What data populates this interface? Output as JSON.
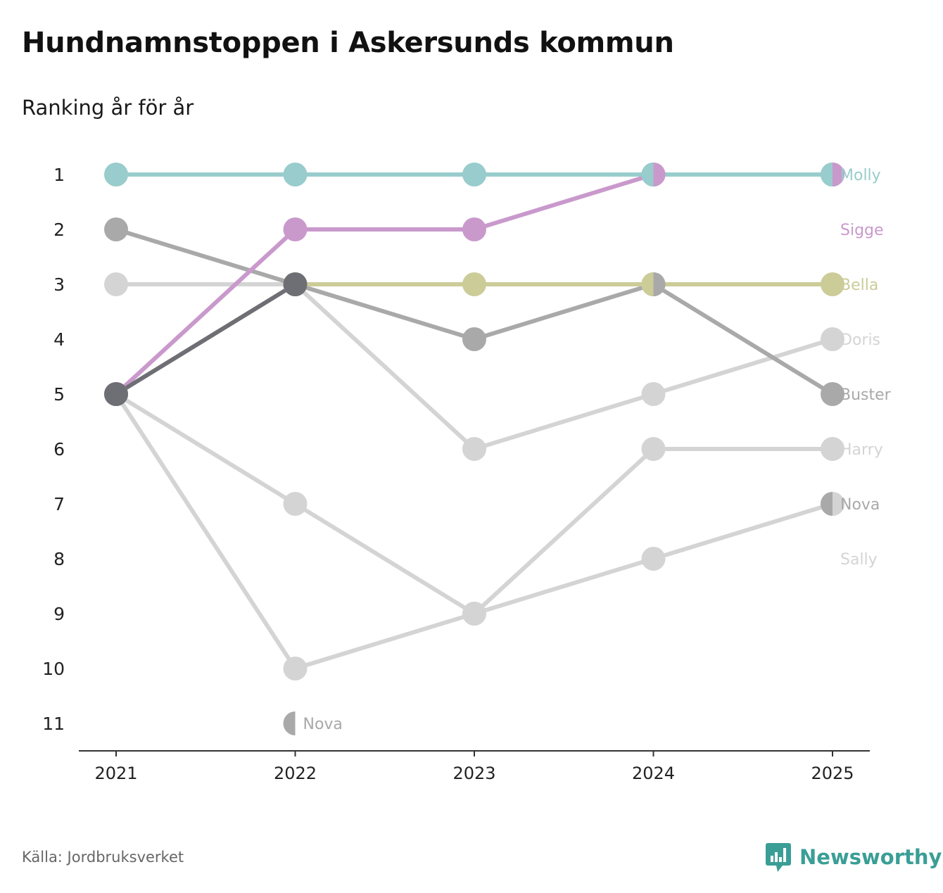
{
  "title": "Hundnamnstoppen i Askersunds kommun",
  "subtitle": "Ranking år för år",
  "source": "Källa: Jordbruksverket",
  "brand": {
    "name": "Newsworthy",
    "color": "#3a9e96",
    "logo_icon": "bar-chart-speech-bubble-icon"
  },
  "chart_data": {
    "type": "line",
    "title": "Hundnamnstoppen i Askersunds kommun",
    "subtitle": "Ranking år för år",
    "xlabel": "",
    "ylabel": "",
    "x": [
      "2021",
      "2022",
      "2023",
      "2024",
      "2025"
    ],
    "y_ticks": [
      "1",
      "2",
      "3",
      "4",
      "5",
      "6",
      "7",
      "8",
      "9",
      "10",
      "11"
    ],
    "ylim": [
      1,
      11
    ],
    "y_inverted": true,
    "grid": false,
    "series": [
      {
        "name": "Sally",
        "values": [
          5,
          10,
          9,
          8,
          7
        ],
        "color": "#d4d4d4"
      },
      {
        "name": "Harry",
        "values": [
          5,
          7,
          9,
          6,
          6
        ],
        "color": "#d4d4d4"
      },
      {
        "name": "Doris",
        "values": [
          3,
          3,
          6,
          5,
          4
        ],
        "color": "#d4d4d4"
      },
      {
        "name": "Buster",
        "values": [
          2,
          3,
          4,
          3,
          5
        ],
        "color": "#a9a9aa"
      },
      {
        "name": "Bella",
        "values": [
          5,
          3,
          3,
          3,
          3
        ],
        "color": "#cccc99"
      },
      {
        "name": "Sigge",
        "values": [
          5,
          2,
          2,
          1,
          1
        ],
        "color": "#c999cc"
      },
      {
        "name": "Molly",
        "values": [
          1,
          1,
          1,
          1,
          1
        ],
        "color": "#99cccc"
      },
      {
        "name": "Nova",
        "values": [
          5,
          3,
          null,
          null,
          null
        ],
        "color": "#6e6e75"
      }
    ],
    "annotations": [
      {
        "text": "Nova",
        "x": "2022",
        "y": 11,
        "color": "#a9a9aa"
      }
    ],
    "end_labels": [
      {
        "text": "Molly",
        "y": 1,
        "color": "#99cccc"
      },
      {
        "text": "Sigge",
        "y": 2,
        "color": "#c999cc"
      },
      {
        "text": "Bella",
        "y": 3,
        "color": "#cccc99"
      },
      {
        "text": "Doris",
        "y": 4,
        "color": "#d4d4d4"
      },
      {
        "text": "Buster",
        "y": 5,
        "color": "#a9a9aa"
      },
      {
        "text": "Harry",
        "y": 6,
        "color": "#d4d4d4"
      },
      {
        "text": "Nova",
        "y": 7,
        "color": "#a9a9aa"
      },
      {
        "text": "Sally",
        "y": 8,
        "color": "#d4d4d4"
      }
    ],
    "split_markers": [
      {
        "x": "2024",
        "y": 1,
        "left": "#99cccc",
        "right": "#c999cc"
      },
      {
        "x": "2025",
        "y": 1,
        "left": "#99cccc",
        "right": "#c999cc"
      },
      {
        "x": "2024",
        "y": 3,
        "left": "#cccc99",
        "right": "#a9a9aa"
      },
      {
        "x": "2025",
        "y": 7,
        "left": "#a9a9aa",
        "right": "#d4d4d4"
      },
      {
        "x": "2022",
        "y": 11,
        "left": "#a9a9aa",
        "right": "#ffffff"
      }
    ]
  }
}
